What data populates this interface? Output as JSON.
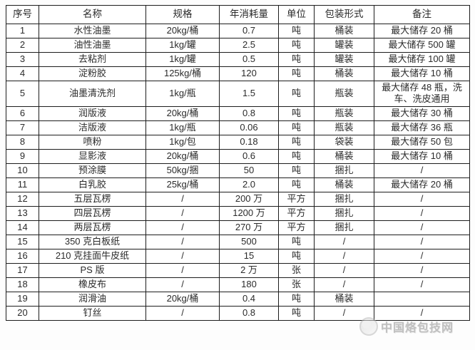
{
  "table": {
    "headers": [
      "序号",
      "名称",
      "规格",
      "年消耗量",
      "单位",
      "包装形式",
      "备注"
    ],
    "column_keys": [
      "index",
      "name",
      "spec",
      "annual",
      "unit",
      "packaging",
      "remark"
    ],
    "rows": [
      [
        "1",
        "水性油墨",
        "20kg/桶",
        "0.7",
        "吨",
        "桶装",
        "最大储存 20 桶"
      ],
      [
        "2",
        "油性油墨",
        "1kg/罐",
        "2.5",
        "吨",
        "罐装",
        "最大储存 500 罐"
      ],
      [
        "3",
        "去粘剂",
        "1kg/罐",
        "0.5",
        "吨",
        "罐装",
        "最大储存 100 罐"
      ],
      [
        "4",
        "淀粉胶",
        "125kg/桶",
        "120",
        "吨",
        "桶装",
        "最大储存 10 桶"
      ],
      [
        "5",
        "油墨清洗剂",
        "1kg/瓶",
        "1.5",
        "吨",
        "瓶装",
        "最大储存 48 瓶，洗车、洗皮通用"
      ],
      [
        "6",
        "润版液",
        "20kg/桶",
        "0.8",
        "吨",
        "瓶装",
        "最大储存 30 桶"
      ],
      [
        "7",
        "洁版液",
        "1kg/瓶",
        "0.06",
        "吨",
        "瓶装",
        "最大储存 36 瓶"
      ],
      [
        "8",
        "喷粉",
        "1kg/包",
        "0.18",
        "吨",
        "袋装",
        "最大储存 50 包"
      ],
      [
        "9",
        "显影液",
        "20kg/桶",
        "0.6",
        "吨",
        "桶装",
        "最大储存 10 桶"
      ],
      [
        "10",
        "预涂膜",
        "50kg/捆",
        "50",
        "吨",
        "捆扎",
        "/"
      ],
      [
        "11",
        "白乳胶",
        "25kg/桶",
        "2.0",
        "吨",
        "桶装",
        "最大储存 20 桶"
      ],
      [
        "12",
        "五层瓦楞",
        "/",
        "200 万",
        "平方",
        "捆扎",
        "/"
      ],
      [
        "13",
        "四层瓦楞",
        "/",
        "1200 万",
        "平方",
        "捆扎",
        "/"
      ],
      [
        "14",
        "两层瓦楞",
        "/",
        "270 万",
        "平方",
        "捆扎",
        "/"
      ],
      [
        "15",
        "350 克白板纸",
        "/",
        "500",
        "吨",
        "/",
        "/"
      ],
      [
        "16",
        "210 克挂面牛皮纸",
        "/",
        "15",
        "吨",
        "/",
        "/"
      ],
      [
        "17",
        "PS 版",
        "/",
        "2 万",
        "张",
        "/",
        "/"
      ],
      [
        "18",
        "橡皮布",
        "/",
        "180",
        "张",
        "/",
        "/"
      ],
      [
        "19",
        "润滑油",
        "20kg/桶",
        "0.4",
        "吨",
        "桶装",
        ""
      ],
      [
        "20",
        "钉丝",
        "/",
        "0.8",
        "吨",
        "/",
        "/"
      ]
    ]
  },
  "watermark": {
    "text": "中国烙包技网",
    "logo_icon": "globe-logo"
  },
  "colors": {
    "border": "#1d1d1d",
    "text": "#2b2b2b",
    "background": "#ffffff",
    "watermark_text": "#8f8f8f"
  }
}
